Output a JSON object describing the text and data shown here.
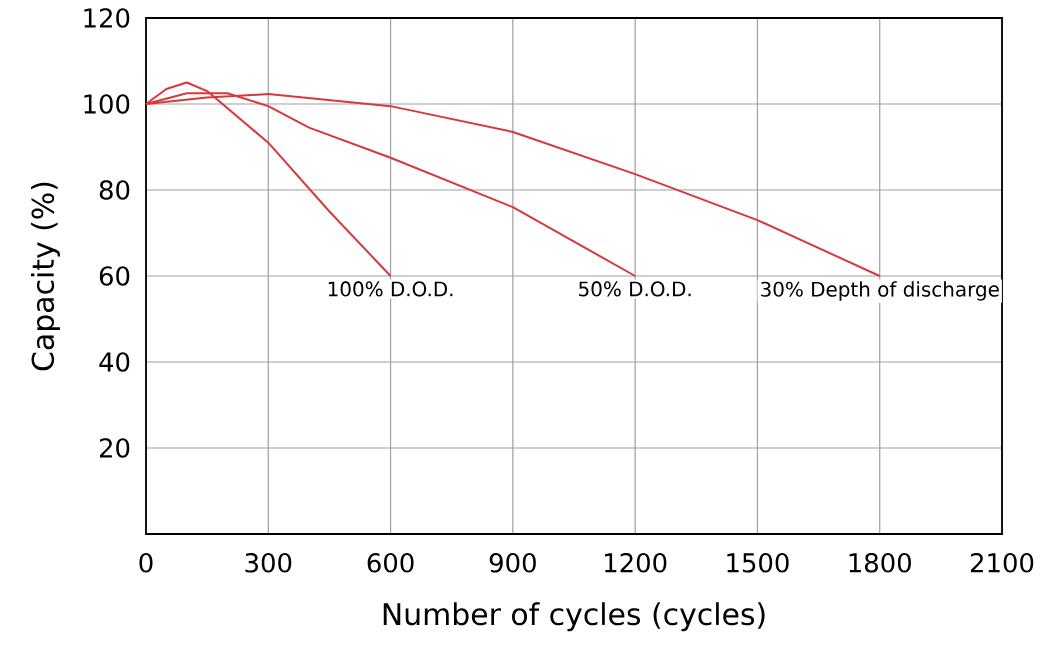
{
  "chart_data": {
    "type": "line",
    "xlabel": "Number of cycles (cycles)",
    "ylabel": "Capacity (%)",
    "series": [
      {
        "color": "#d9383a",
        "x": [
          0,
          50,
          100,
          150,
          200,
          300,
          450,
          600
        ],
        "values": [
          100,
          103.5,
          105,
          103,
          99,
          91,
          75,
          60
        ]
      },
      {
        "color": "#d9383a",
        "x": [
          0,
          100,
          200,
          300,
          400,
          600,
          900,
          1200
        ],
        "values": [
          100,
          102.5,
          102.5,
          99.5,
          94.5,
          87.5,
          76,
          60
        ]
      },
      {
        "color": "#d9383a",
        "x": [
          0,
          150,
          300,
          600,
          900,
          1200,
          1500,
          1800
        ],
        "values": [
          100,
          101.5,
          102.3,
          99.5,
          93.5,
          83.7,
          73,
          60
        ]
      }
    ],
    "annotations": [
      {
        "text": "100% D.O.D.",
        "x": 600,
        "y": 60
      },
      {
        "text": "50% D.O.D.",
        "x": 1200,
        "y": 60
      },
      {
        "text": "30% Depth of discharge",
        "x": 1800,
        "y": 60
      }
    ],
    "xlim": [
      0,
      2100
    ],
    "xticks": [
      0,
      300,
      600,
      900,
      1200,
      1500,
      1800,
      2100
    ],
    "ylim": [
      0,
      120
    ],
    "yticks": [
      {
        "value": 0,
        "label": null
      },
      20,
      40,
      60,
      80,
      100,
      120
    ],
    "grid": true,
    "marker": "none",
    "line_style": "solid"
  }
}
